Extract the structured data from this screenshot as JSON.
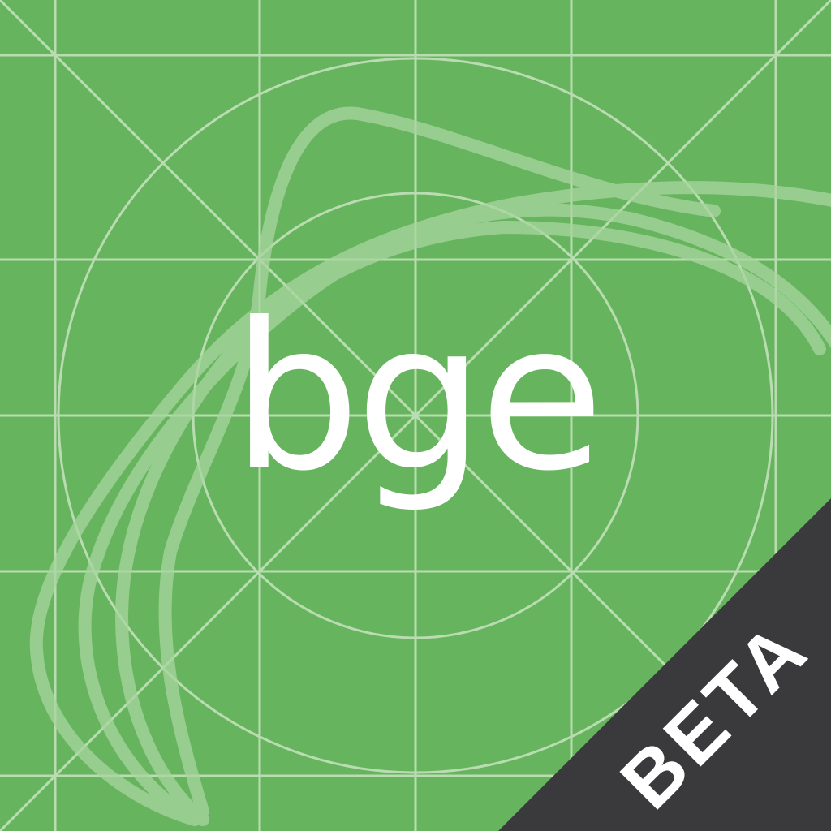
{
  "brand": {
    "wordmark": "bge",
    "badge_label": "BETA"
  },
  "colors": {
    "background": "#67b45f",
    "grid_lines": "#c8e4c0",
    "swoosh": "#a8d69f",
    "badge": "#3a3a3c",
    "text": "#ffffff"
  },
  "icons": {
    "background": "keyline-grid-icon",
    "decoration": "swoosh-ribbon-icon"
  }
}
